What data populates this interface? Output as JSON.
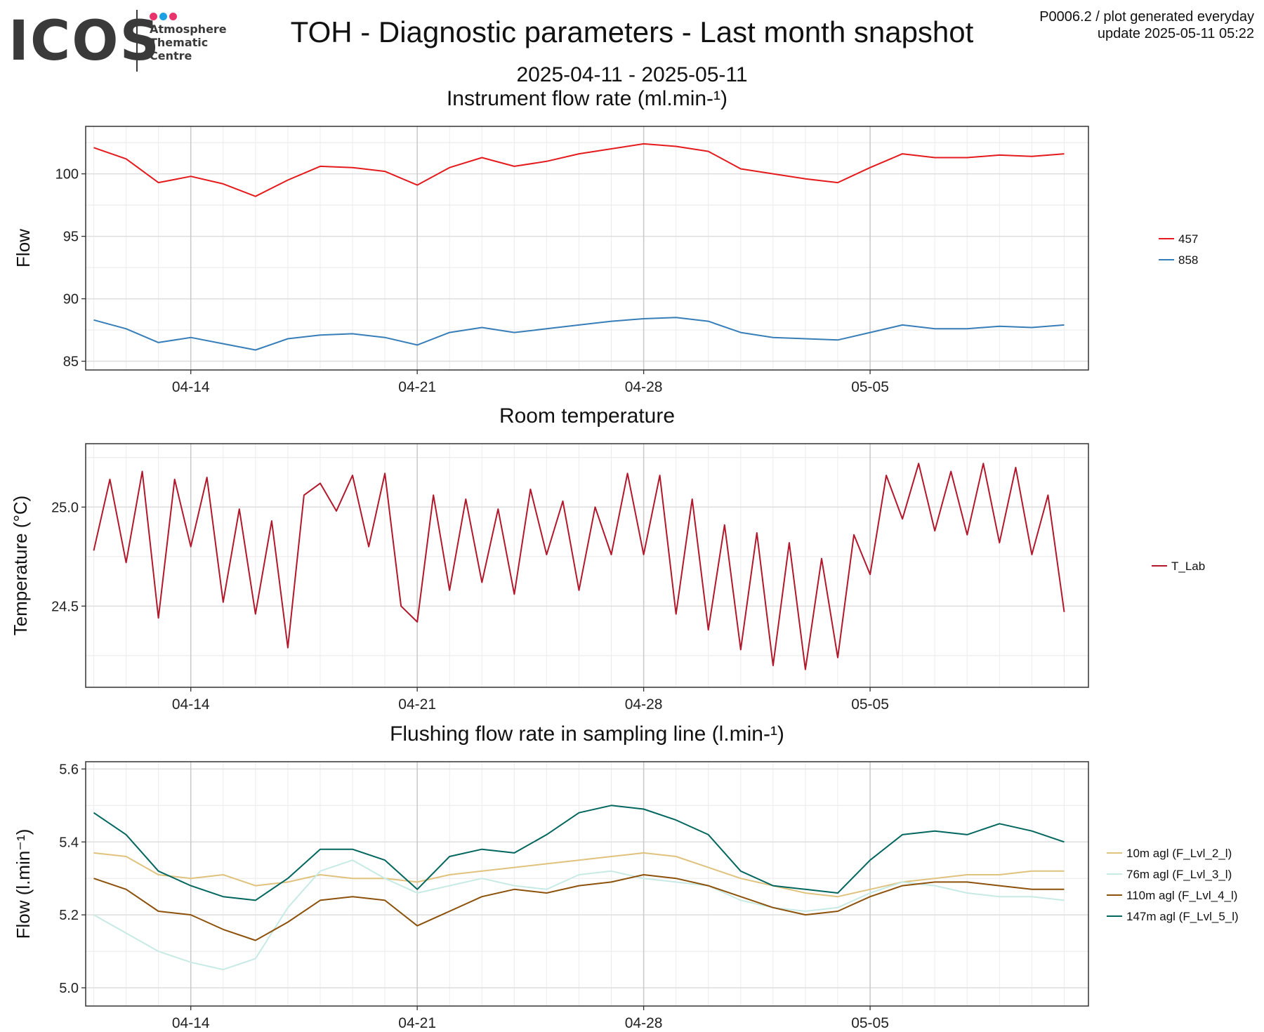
{
  "header": {
    "logo_word": "ICOS",
    "logo_lines": [
      "Atmosphere",
      "Thematic",
      "Centre"
    ],
    "logo_dot_colors": [
      "#e8336d",
      "#1ba1e2",
      "#e8336d"
    ],
    "title": "TOH - Diagnostic parameters - Last month snapshot",
    "date_range": "2025-04-11 - 2025-05-11",
    "info_line1": "P0006.2 / plot generated everyday",
    "info_line2": "update  2025-05-11 05:22"
  },
  "chart_data": [
    {
      "type": "line",
      "title": "Instrument flow rate (ml.min-¹)",
      "xlabel": "",
      "ylabel": "Flow",
      "x_start": "2025-04-11",
      "x_ticks": [
        "04-14",
        "04-21",
        "04-28",
        "05-05"
      ],
      "xlim": [
        "2025-04-11",
        "2025-05-11"
      ],
      "ylim": [
        84.3,
        103.8
      ],
      "yticks": [
        85,
        90,
        95,
        100
      ],
      "grid": true,
      "legend": "right",
      "series": [
        {
          "name": "457",
          "color": "#e41a1c",
          "x": [
            "04-11",
            "04-12",
            "04-13",
            "04-14",
            "04-15",
            "04-16",
            "04-17",
            "04-18",
            "04-19",
            "04-20",
            "04-21",
            "04-22",
            "04-23",
            "04-24",
            "04-25",
            "04-26",
            "04-27",
            "04-28",
            "04-29",
            "04-30",
            "05-01",
            "05-02",
            "05-03",
            "05-04",
            "05-05",
            "05-06",
            "05-07",
            "05-08",
            "05-09",
            "05-10",
            "05-11"
          ],
          "values": [
            102.1,
            101.2,
            99.3,
            99.8,
            99.2,
            98.2,
            99.5,
            100.6,
            100.5,
            100.2,
            99.1,
            100.5,
            101.3,
            100.6,
            101.0,
            101.6,
            102.0,
            102.4,
            102.2,
            101.8,
            100.4,
            100.0,
            99.6,
            99.3,
            100.5,
            101.6,
            101.3,
            101.3,
            101.5,
            101.4,
            101.6
          ]
        },
        {
          "name": "858",
          "color": "#377eb8",
          "x": [
            "04-11",
            "04-12",
            "04-13",
            "04-14",
            "04-15",
            "04-16",
            "04-17",
            "04-18",
            "04-19",
            "04-20",
            "04-21",
            "04-22",
            "04-23",
            "04-24",
            "04-25",
            "04-26",
            "04-27",
            "04-28",
            "04-29",
            "04-30",
            "05-01",
            "05-02",
            "05-03",
            "05-04",
            "05-05",
            "05-06",
            "05-07",
            "05-08",
            "05-09",
            "05-10",
            "05-11"
          ],
          "values": [
            88.3,
            87.6,
            86.5,
            86.9,
            86.4,
            85.9,
            86.8,
            87.1,
            87.2,
            86.9,
            86.3,
            87.3,
            87.7,
            87.3,
            87.6,
            87.9,
            88.2,
            88.4,
            88.5,
            88.2,
            87.3,
            86.9,
            86.8,
            86.7,
            87.3,
            87.9,
            87.6,
            87.6,
            87.8,
            87.7,
            87.9
          ]
        }
      ]
    },
    {
      "type": "line",
      "title": "Room temperature",
      "xlabel": "",
      "ylabel": "Temperature (°C)",
      "x_start": "2025-04-11",
      "x_ticks": [
        "04-14",
        "04-21",
        "04-28",
        "05-05"
      ],
      "xlim": [
        "2025-04-11",
        "2025-05-11"
      ],
      "ylim": [
        24.09,
        25.32
      ],
      "yticks": [
        24.5,
        25.0
      ],
      "grid": true,
      "legend": "right",
      "series": [
        {
          "name": "T_Lab",
          "color": "#b2182b",
          "x": [
            "04-11",
            "04-11 12:00",
            "04-12",
            "04-12 12:00",
            "04-13",
            "04-13 12:00",
            "04-14",
            "04-14 12:00",
            "04-15",
            "04-15 12:00",
            "04-16",
            "04-16 12:00",
            "04-17",
            "04-17 12:00",
            "04-18",
            "04-18 12:00",
            "04-19",
            "04-19 12:00",
            "04-20",
            "04-20 12:00",
            "04-21",
            "04-21 12:00",
            "04-22",
            "04-22 12:00",
            "04-23",
            "04-23 12:00",
            "04-24",
            "04-24 12:00",
            "04-25",
            "04-25 12:00",
            "04-26",
            "04-26 12:00",
            "04-27",
            "04-27 12:00",
            "04-28",
            "04-28 12:00",
            "04-29",
            "04-29 12:00",
            "04-30",
            "04-30 12:00",
            "05-01",
            "05-01 12:00",
            "05-02",
            "05-02 12:00",
            "05-03",
            "05-03 12:00",
            "05-04",
            "05-04 12:00",
            "05-05",
            "05-05 12:00",
            "05-06",
            "05-06 12:00",
            "05-07",
            "05-07 12:00",
            "05-08",
            "05-08 12:00",
            "05-09",
            "05-09 12:00",
            "05-10",
            "05-10 12:00",
            "05-11"
          ],
          "values": [
            24.78,
            25.14,
            24.72,
            25.18,
            24.44,
            25.14,
            24.8,
            25.15,
            24.52,
            24.99,
            24.46,
            24.93,
            24.29,
            25.06,
            25.12,
            24.98,
            25.16,
            24.8,
            25.17,
            24.5,
            24.42,
            25.06,
            24.58,
            25.04,
            24.62,
            24.99,
            24.56,
            25.09,
            24.76,
            25.03,
            24.58,
            25.0,
            24.76,
            25.17,
            24.76,
            25.16,
            24.46,
            25.04,
            24.38,
            24.91,
            24.28,
            24.87,
            24.2,
            24.82,
            24.18,
            24.74,
            24.24,
            24.86,
            24.66,
            25.16,
            24.94,
            25.22,
            24.88,
            25.18,
            24.86,
            25.22,
            24.82,
            25.2,
            24.76,
            25.06,
            24.47
          ]
        }
      ]
    },
    {
      "type": "line",
      "title": "Flushing flow rate in sampling line (l.min-¹)",
      "xlabel": "",
      "ylabel": "Flow (l.min⁻¹)",
      "x_start": "2025-04-11",
      "x_ticks": [
        "04-14",
        "04-21",
        "04-28",
        "05-05"
      ],
      "xlim": [
        "2025-04-11",
        "2025-05-11"
      ],
      "ylim": [
        4.95,
        5.62
      ],
      "yticks": [
        5.0,
        5.2,
        5.4,
        5.6
      ],
      "grid": true,
      "legend": "right",
      "series": [
        {
          "name": "10m agl (F_Lvl_2_l)",
          "color": "#dfc27d",
          "x": [
            "04-11",
            "04-12",
            "04-13",
            "04-14",
            "04-15",
            "04-16",
            "04-17",
            "04-18",
            "04-19",
            "04-20",
            "04-21",
            "04-22",
            "04-23",
            "04-24",
            "04-25",
            "04-26",
            "04-27",
            "04-28",
            "04-29",
            "04-30",
            "05-01",
            "05-02",
            "05-03",
            "05-04",
            "05-05",
            "05-06",
            "05-07",
            "05-08",
            "05-09",
            "05-10",
            "05-11"
          ],
          "values": [
            5.37,
            5.36,
            5.31,
            5.3,
            5.31,
            5.28,
            5.29,
            5.31,
            5.3,
            5.3,
            5.29,
            5.31,
            5.32,
            5.33,
            5.34,
            5.35,
            5.36,
            5.37,
            5.36,
            5.33,
            5.3,
            5.28,
            5.26,
            5.25,
            5.27,
            5.29,
            5.3,
            5.31,
            5.31,
            5.32,
            5.32
          ]
        },
        {
          "name": "76m agl (F_Lvl_3_l)",
          "color": "#c7eae5",
          "x": [
            "04-11",
            "04-12",
            "04-13",
            "04-14",
            "04-15",
            "04-16",
            "04-17",
            "04-18",
            "04-19",
            "04-20",
            "04-21",
            "04-22",
            "04-23",
            "04-24",
            "04-25",
            "04-26",
            "04-27",
            "04-28",
            "04-29",
            "04-30",
            "05-01",
            "05-02",
            "05-03",
            "05-04",
            "05-05",
            "05-06",
            "05-07",
            "05-08",
            "05-09",
            "05-10",
            "05-11"
          ],
          "values": [
            5.2,
            5.15,
            5.1,
            5.07,
            5.05,
            5.08,
            5.22,
            5.32,
            5.35,
            5.3,
            5.26,
            5.28,
            5.3,
            5.28,
            5.27,
            5.31,
            5.32,
            5.3,
            5.29,
            5.28,
            5.24,
            5.22,
            5.21,
            5.22,
            5.26,
            5.29,
            5.28,
            5.26,
            5.25,
            5.25,
            5.24
          ]
        },
        {
          "name": "110m agl (F_Lvl_4_l)",
          "color": "#8c510a",
          "x": [
            "04-11",
            "04-12",
            "04-13",
            "04-14",
            "04-15",
            "04-16",
            "04-17",
            "04-18",
            "04-19",
            "04-20",
            "04-21",
            "04-22",
            "04-23",
            "04-24",
            "04-25",
            "04-26",
            "04-27",
            "04-28",
            "04-29",
            "04-30",
            "05-01",
            "05-02",
            "05-03",
            "05-04",
            "05-05",
            "05-06",
            "05-07",
            "05-08",
            "05-09",
            "05-10",
            "05-11"
          ],
          "values": [
            5.3,
            5.27,
            5.21,
            5.2,
            5.16,
            5.13,
            5.18,
            5.24,
            5.25,
            5.24,
            5.17,
            5.21,
            5.25,
            5.27,
            5.26,
            5.28,
            5.29,
            5.31,
            5.3,
            5.28,
            5.25,
            5.22,
            5.2,
            5.21,
            5.25,
            5.28,
            5.29,
            5.29,
            5.28,
            5.27,
            5.27
          ]
        },
        {
          "name": "147m agl (F_Lvl_5_l)",
          "color": "#01665e",
          "x": [
            "04-11",
            "04-12",
            "04-13",
            "04-14",
            "04-15",
            "04-16",
            "04-17",
            "04-18",
            "04-19",
            "04-20",
            "04-21",
            "04-22",
            "04-23",
            "04-24",
            "04-25",
            "04-26",
            "04-27",
            "04-28",
            "04-29",
            "04-30",
            "05-01",
            "05-02",
            "05-03",
            "05-04",
            "05-05",
            "05-06",
            "05-07",
            "05-08",
            "05-09",
            "05-10",
            "05-11"
          ],
          "values": [
            5.48,
            5.42,
            5.32,
            5.28,
            5.25,
            5.24,
            5.3,
            5.38,
            5.38,
            5.35,
            5.27,
            5.36,
            5.38,
            5.37,
            5.42,
            5.48,
            5.5,
            5.49,
            5.46,
            5.42,
            5.32,
            5.28,
            5.27,
            5.26,
            5.35,
            5.42,
            5.43,
            5.42,
            5.45,
            5.43,
            5.4
          ]
        }
      ]
    }
  ]
}
